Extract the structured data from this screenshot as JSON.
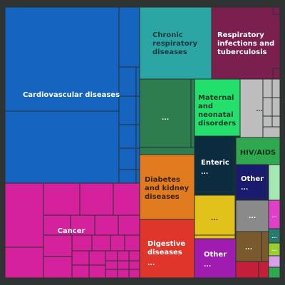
{
  "chart_data": {
    "type": "treemap",
    "colors": {
      "cardiovascular": "#1565c0",
      "chronic_respiratory": "#2ca6a4",
      "respiratory_infections": "#7a1f4e",
      "cancer": "#d5219b",
      "ncd_other": "#2e7d4f",
      "maternal": "#22e06b",
      "nutrition_grey": "#bdbdbd",
      "diabetes": "#e07b1f",
      "enteric": "#0b2b3f",
      "hiv": "#2fa84f",
      "other_navy": "#1a1a6e",
      "digestive": "#e0352b",
      "other_yellow": "#e0c21a",
      "other_purple": "#a01cb0",
      "neglected": "#7a5a2c",
      "grey_mid": "#8a8a8a",
      "injury_red": "#c41e3a"
    },
    "labels": {
      "cardiovascular": "Cardiovascular diseases",
      "chronic_respiratory": "Chronic respiratory diseases",
      "respiratory_infections": "Respiratory infections and tuberculosis",
      "cancer": "Cancer",
      "ncd_other": "...",
      "maternal": "Maternal and neonatal disorders",
      "nutrition": "...",
      "diabetes": "Diabetes and kidney diseases",
      "enteric": "Enteric",
      "enteric_sub": "...",
      "hiv": "HIV/AIDS",
      "other_navy": "Other",
      "other_navy_sub": "...",
      "digestive": "Digestive diseases",
      "digestive_sub": "...",
      "other_yellow": "...",
      "other_purple": "Other",
      "other_purple_sub": "...",
      "grey_mid": "...",
      "neglected": "...",
      "small_1": "...",
      "small_2": "...",
      "small_3": "..."
    }
  }
}
